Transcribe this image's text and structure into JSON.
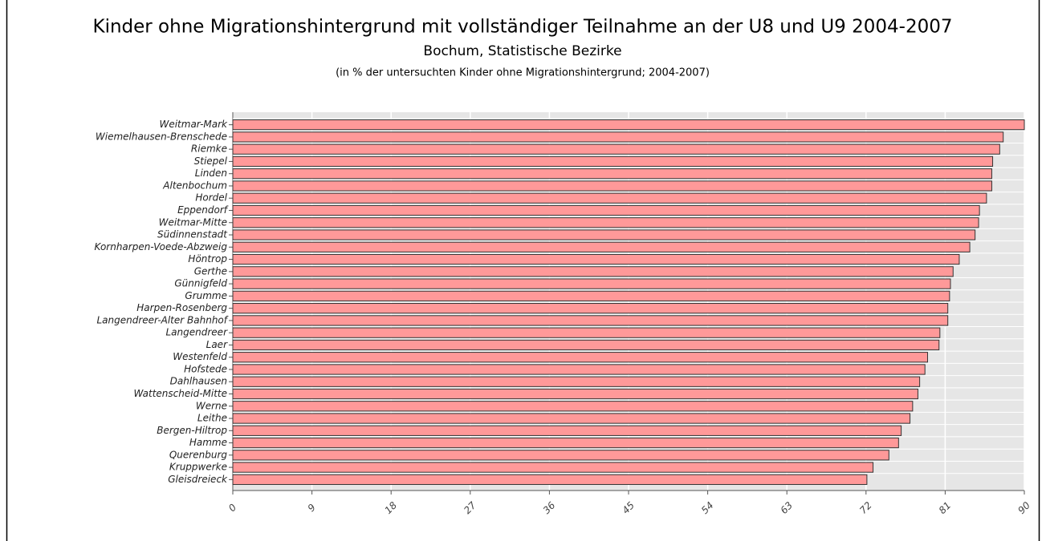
{
  "chart_data": {
    "type": "bar",
    "orientation": "horizontal",
    "title": "Kinder ohne Migrationshintergrund mit vollständiger Teilnahme an der U8 und U9 2004-2007",
    "subtitle": "Bochum, Statistische Bezirke",
    "note": "(in % der untersuchten Kinder ohne Migrationshintergrund; 2004-2007)",
    "categories": [
      "Weitmar-Mark",
      "Wiemelhausen-Brenschede",
      "Riemke",
      "Stiepel",
      "Linden",
      "Altenbochum",
      "Hordel",
      "Eppendorf",
      "Weitmar-Mitte",
      "Südinnenstadt",
      "Kornharpen-Voede-Abzweig",
      "Höntrop",
      "Gerthe",
      "Günnigfeld",
      "Grumme",
      "Harpen-Rosenberg",
      "Langendreer-Alter Bahnhof",
      "Langendreer",
      "Laer",
      "Westenfeld",
      "Hofstede",
      "Dahlhausen",
      "Wattenscheid-Mitte",
      "Werne",
      "Leithe",
      "Bergen-Hiltrop",
      "Hamme",
      "Querenburg",
      "Kruppwerke",
      "Gleisdreieck"
    ],
    "values": [
      90,
      87.6,
      87.2,
      86.4,
      86.3,
      86.3,
      85.7,
      84.9,
      84.8,
      84.4,
      83.8,
      82.6,
      81.9,
      81.6,
      81.5,
      81.3,
      81.3,
      80.4,
      80.3,
      79.0,
      78.7,
      78.1,
      77.9,
      77.3,
      77.0,
      76.0,
      75.7,
      74.6,
      72.8,
      72.1
    ],
    "color": "#ff9999",
    "xlim": [
      0,
      90
    ],
    "xticks": [
      0,
      9,
      18,
      27,
      36,
      45,
      54,
      63,
      72,
      81,
      90
    ],
    "grid": true
  }
}
